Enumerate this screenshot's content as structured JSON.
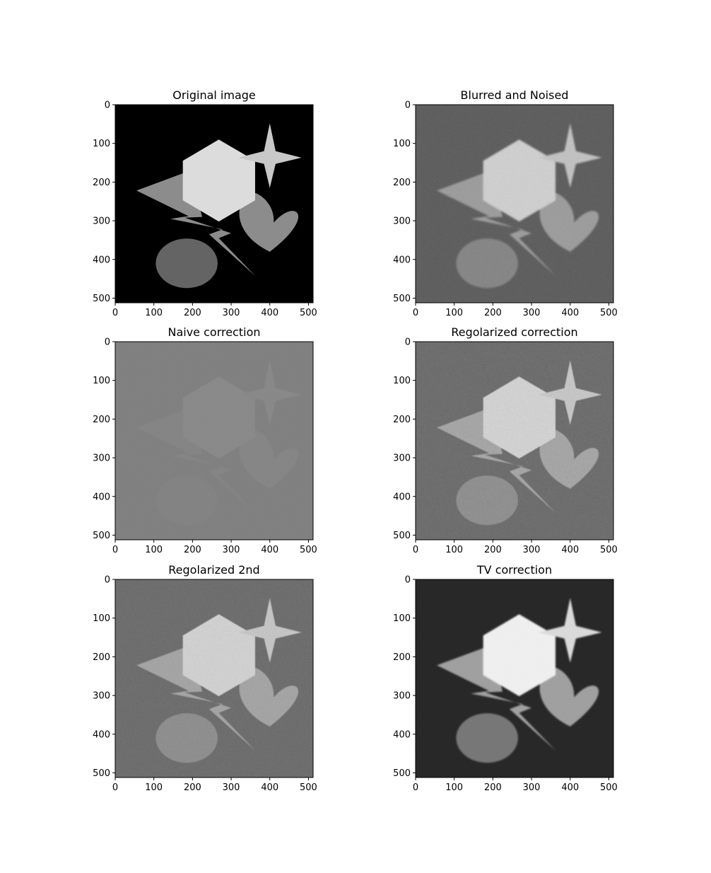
{
  "chart_data": [
    {
      "type": "heatmap",
      "title": "Original image",
      "colormap": "gray",
      "xlim": [
        0,
        512
      ],
      "ylim": [
        512,
        0
      ],
      "xticks": [
        0,
        100,
        200,
        300,
        400,
        500
      ],
      "yticks": [
        0,
        100,
        200,
        300,
        400,
        500
      ],
      "grid": false,
      "content": {
        "background": "#000000",
        "noise": 0,
        "blur": 0,
        "hexagon": "#dcdcdc",
        "star": "#c8c8c8",
        "heart": "#8c8c8c",
        "bolt": "#8c8c8c",
        "ellipse": "#646464"
      }
    },
    {
      "type": "heatmap",
      "title": "Blurred and Noised",
      "colormap": "gray",
      "xlim": [
        0,
        512
      ],
      "ylim": [
        512,
        0
      ],
      "xticks": [
        0,
        100,
        200,
        300,
        400,
        500
      ],
      "yticks": [
        0,
        100,
        200,
        300,
        400,
        500
      ],
      "grid": false,
      "content": {
        "background": "#2e2e2e",
        "noise": 0.35,
        "blur": 2.5,
        "hexagon": "#d8d8d8",
        "star": "#c4c4c4",
        "heart": "#8c8c8c",
        "bolt": "#8c8c8c",
        "ellipse": "#6a6a6a"
      }
    },
    {
      "type": "heatmap",
      "title": "Naive correction",
      "colormap": "gray",
      "xlim": [
        0,
        512
      ],
      "ylim": [
        512,
        0
      ],
      "xticks": [
        0,
        100,
        200,
        300,
        400,
        500
      ],
      "yticks": [
        0,
        100,
        200,
        300,
        400,
        500
      ],
      "grid": false,
      "content": {
        "background": "#7a7a7a",
        "noise": 0.1,
        "blur": 1,
        "hexagon": "#848484",
        "star": "#838383",
        "heart": "#808080",
        "bolt": "#7f7f7f",
        "ellipse": "#7d7d7d"
      }
    },
    {
      "type": "heatmap",
      "title": "Regolarized correction",
      "colormap": "gray",
      "xlim": [
        0,
        512
      ],
      "ylim": [
        512,
        0
      ],
      "xticks": [
        0,
        100,
        200,
        300,
        400,
        500
      ],
      "yticks": [
        0,
        100,
        200,
        300,
        400,
        500
      ],
      "grid": false,
      "content": {
        "background": "#2f2f2f",
        "noise": 0.45,
        "blur": 0.8,
        "hexagon": "#e2e2e2",
        "star": "#cdcdcd",
        "heart": "#939393",
        "bolt": "#939393",
        "ellipse": "#6c6c6c"
      }
    },
    {
      "type": "heatmap",
      "title": "Regolarized 2nd",
      "colormap": "gray",
      "xlim": [
        0,
        512
      ],
      "ylim": [
        512,
        0
      ],
      "xticks": [
        0,
        100,
        200,
        300,
        400,
        500
      ],
      "yticks": [
        0,
        100,
        200,
        300,
        400,
        500
      ],
      "grid": false,
      "content": {
        "background": "#2f2f2f",
        "noise": 0.45,
        "blur": 0.8,
        "hexagon": "#e0e0e0",
        "star": "#cbcbcb",
        "heart": "#919191",
        "bolt": "#919191",
        "ellipse": "#6b6b6b"
      }
    },
    {
      "type": "heatmap",
      "title": "TV correction",
      "colormap": "gray",
      "xlim": [
        0,
        512
      ],
      "ylim": [
        512,
        0
      ],
      "xticks": [
        0,
        100,
        200,
        300,
        400,
        500
      ],
      "yticks": [
        0,
        100,
        200,
        300,
        400,
        500
      ],
      "grid": false,
      "content": {
        "background": "#141414",
        "noise": 0.12,
        "blur": 1.8,
        "hexagon": "#f6f6f6",
        "star": "#dedede",
        "heart": "#9c9c9c",
        "bolt": "#9c9c9c",
        "ellipse": "#6e6e6e"
      }
    }
  ]
}
